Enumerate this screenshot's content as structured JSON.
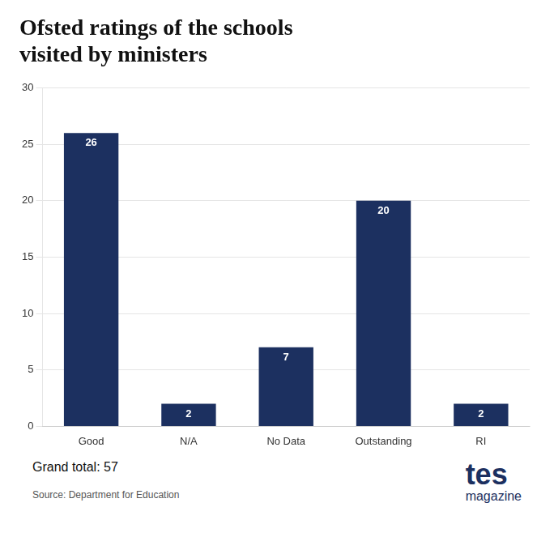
{
  "chart_data": {
    "type": "bar",
    "title": "Ofsted ratings of the schools\nvisited by ministers",
    "categories": [
      "Good",
      "N/A",
      "No Data",
      "Outstanding",
      "RI"
    ],
    "values": [
      26,
      2,
      7,
      20,
      2
    ],
    "color": "#1c3060",
    "ylim": [
      0,
      30
    ],
    "yticks": [
      0,
      5,
      10,
      15,
      20,
      25,
      30
    ],
    "grid": true,
    "data_labels": true,
    "annotations": [
      "Grand total: 57",
      "Source: Department for Education",
      "tes",
      "magazine"
    ]
  }
}
